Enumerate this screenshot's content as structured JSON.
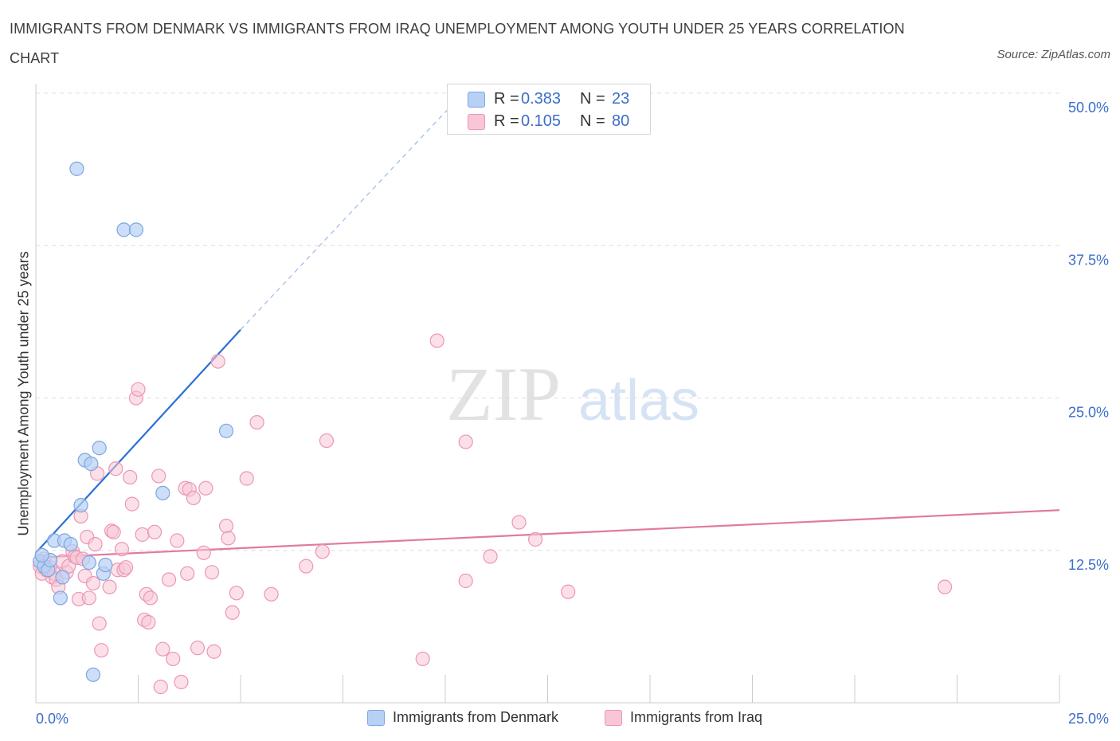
{
  "title": "IMMIGRANTS FROM DENMARK VS IMMIGRANTS FROM IRAQ UNEMPLOYMENT AMONG YOUTH UNDER 25 YEARS CORRELATION CHART",
  "source": "Source: ZipAtlas.com",
  "watermark": {
    "zip": "ZIP",
    "atlas": "atlas"
  },
  "legend": {
    "denmark": {
      "r_label": "R =",
      "r_value": "0.383",
      "n_label": "N =",
      "n_value": "23"
    },
    "iraq": {
      "r_label": "R =",
      "r_value": "0.105",
      "n_label": "N =",
      "n_value": "80"
    }
  },
  "colors": {
    "denmark_fill": "#b7d0f5",
    "denmark_stroke": "#7ea6e0",
    "denmark_line": "#2a6fd6",
    "iraq_fill": "#f8c6d6",
    "iraq_stroke": "#ec96b4",
    "iraq_line": "#e07aa0",
    "tick_label": "#3b6ec9",
    "grid": "#dddddd"
  },
  "chart_data": {
    "type": "scatter",
    "title": "IMMIGRANTS FROM DENMARK VS IMMIGRANTS FROM IRAQ UNEMPLOYMENT AMONG YOUTH UNDER 25 YEARS CORRELATION CHART",
    "xlabel": "",
    "ylabel": "Unemployment Among Youth under 25 years",
    "xlim": [
      0,
      25
    ],
    "ylim": [
      0,
      50
    ],
    "x_tick_labels": [
      "0.0%",
      "25.0%"
    ],
    "y_ticks": [
      12.5,
      25,
      37.5,
      50
    ],
    "y_tick_labels": [
      "12.5%",
      "25.0%",
      "37.5%",
      "50.0%"
    ],
    "grid": true,
    "legend_position": "bottom",
    "series": [
      {
        "name": "Immigrants from Denmark",
        "points": [
          [
            0.1,
            11.6
          ],
          [
            0.2,
            11.2
          ],
          [
            0.3,
            10.9
          ],
          [
            0.35,
            11.7
          ],
          [
            0.45,
            13.3
          ],
          [
            0.6,
            8.6
          ],
          [
            0.65,
            10.3
          ],
          [
            0.7,
            13.3
          ],
          [
            0.85,
            13.0
          ],
          [
            1.0,
            43.8
          ],
          [
            1.1,
            16.2
          ],
          [
            1.2,
            19.9
          ],
          [
            1.3,
            11.5
          ],
          [
            1.35,
            19.6
          ],
          [
            1.4,
            2.3
          ],
          [
            1.55,
            20.9
          ],
          [
            1.65,
            10.6
          ],
          [
            1.7,
            11.3
          ],
          [
            2.15,
            38.8
          ],
          [
            2.45,
            38.8
          ],
          [
            3.1,
            17.2
          ],
          [
            4.65,
            22.3
          ],
          [
            0.15,
            12.1
          ]
        ],
        "trend": {
          "x": [
            0.0,
            5.0
          ],
          "y": [
            12.3,
            30.6
          ]
        },
        "trend_extension": {
          "x": [
            5.0,
            10.6
          ],
          "y": [
            30.6,
            50.6
          ]
        }
      },
      {
        "name": "Immigrants from Iraq",
        "points": [
          [
            0.1,
            11.2
          ],
          [
            0.15,
            10.6
          ],
          [
            0.2,
            11.8
          ],
          [
            0.25,
            10.9
          ],
          [
            0.35,
            11.1
          ],
          [
            0.4,
            10.3
          ],
          [
            0.45,
            10.6
          ],
          [
            0.5,
            10.1
          ],
          [
            0.55,
            9.5
          ],
          [
            0.65,
            11.6
          ],
          [
            0.75,
            10.7
          ],
          [
            0.8,
            11.2
          ],
          [
            0.9,
            12.4
          ],
          [
            0.95,
            12.0
          ],
          [
            1.0,
            11.9
          ],
          [
            1.05,
            8.5
          ],
          [
            1.1,
            15.3
          ],
          [
            1.15,
            11.8
          ],
          [
            1.2,
            10.4
          ],
          [
            1.25,
            13.6
          ],
          [
            1.3,
            8.6
          ],
          [
            1.4,
            9.8
          ],
          [
            1.45,
            13.0
          ],
          [
            1.5,
            18.8
          ],
          [
            1.55,
            6.5
          ],
          [
            1.6,
            4.3
          ],
          [
            1.8,
            9.5
          ],
          [
            1.85,
            14.1
          ],
          [
            1.9,
            14.0
          ],
          [
            1.95,
            19.2
          ],
          [
            2.0,
            10.9
          ],
          [
            2.1,
            12.6
          ],
          [
            2.15,
            10.9
          ],
          [
            2.2,
            11.1
          ],
          [
            2.3,
            18.5
          ],
          [
            2.35,
            16.3
          ],
          [
            2.45,
            25.0
          ],
          [
            2.5,
            25.7
          ],
          [
            2.6,
            13.8
          ],
          [
            2.65,
            6.8
          ],
          [
            2.7,
            8.9
          ],
          [
            2.75,
            6.6
          ],
          [
            2.8,
            8.6
          ],
          [
            2.9,
            14.0
          ],
          [
            3.0,
            18.6
          ],
          [
            3.05,
            1.3
          ],
          [
            3.1,
            4.4
          ],
          [
            3.25,
            10.1
          ],
          [
            3.35,
            3.6
          ],
          [
            3.45,
            13.3
          ],
          [
            3.55,
            1.7
          ],
          [
            3.65,
            17.6
          ],
          [
            3.7,
            10.6
          ],
          [
            3.75,
            17.5
          ],
          [
            3.85,
            16.8
          ],
          [
            3.95,
            4.5
          ],
          [
            4.1,
            12.3
          ],
          [
            4.15,
            17.6
          ],
          [
            4.3,
            10.7
          ],
          [
            4.35,
            4.2
          ],
          [
            4.45,
            28.0
          ],
          [
            4.65,
            14.5
          ],
          [
            4.7,
            13.5
          ],
          [
            4.8,
            7.4
          ],
          [
            4.9,
            9.0
          ],
          [
            5.15,
            18.4
          ],
          [
            5.4,
            23.0
          ],
          [
            5.75,
            8.9
          ],
          [
            6.6,
            11.2
          ],
          [
            7.0,
            12.4
          ],
          [
            7.1,
            21.5
          ],
          [
            9.45,
            3.6
          ],
          [
            9.8,
            29.7
          ],
          [
            10.5,
            10.0
          ],
          [
            10.5,
            21.4
          ],
          [
            11.1,
            12.0
          ],
          [
            11.8,
            14.8
          ],
          [
            12.2,
            13.4
          ],
          [
            13.0,
            9.1
          ],
          [
            22.2,
            9.5
          ]
        ],
        "trend": {
          "x": [
            0.0,
            25.0
          ],
          "y": [
            11.9,
            15.8
          ]
        }
      }
    ]
  }
}
